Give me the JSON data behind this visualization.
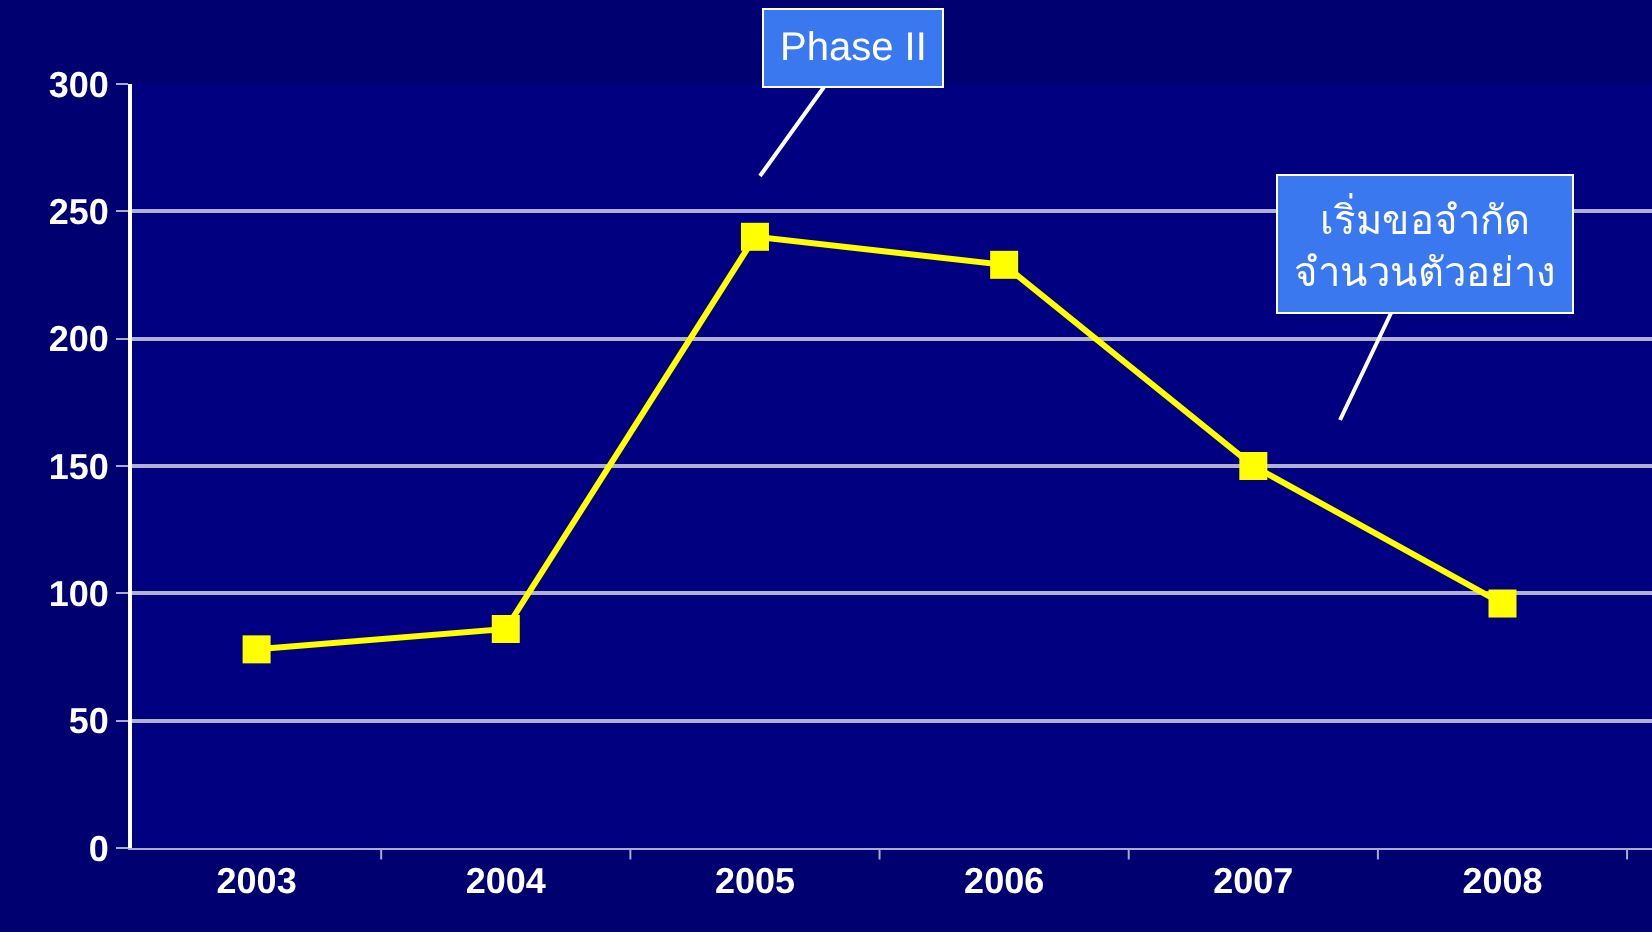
{
  "chart_data": {
    "type": "line",
    "categories": [
      "2003",
      "2004",
      "2005",
      "2006",
      "2007",
      "2008"
    ],
    "series": [
      {
        "color": "#ffff00",
        "values": [
          78,
          86,
          240,
          229,
          150,
          96
        ]
      }
    ],
    "ylim": [
      0,
      300
    ],
    "yticks": [
      0,
      50,
      100,
      150,
      200,
      250,
      300
    ],
    "annotations": [
      "Phase II",
      "เริ่มขอจำกัด\nจำนวนตัวอย่าง"
    ],
    "grid": "y",
    "legend": false,
    "marker": "square",
    "line_style": "solid"
  }
}
